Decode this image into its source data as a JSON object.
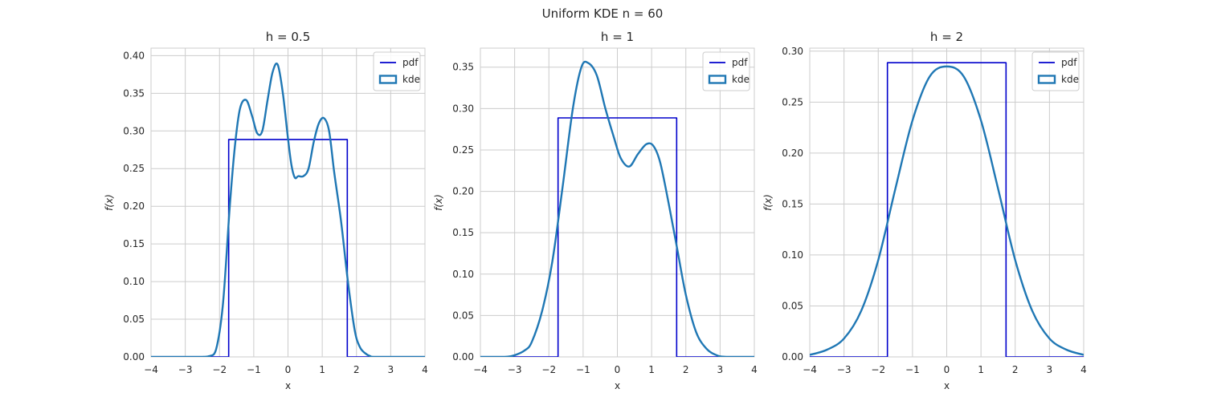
{
  "figure": {
    "suptitle": "Uniform KDE n = 60"
  },
  "colors": {
    "pdf": "#0000cc",
    "kde": "#1f77b4",
    "grid": "#cccccc",
    "text": "#262626"
  },
  "chart_data": [
    {
      "type": "line",
      "title": "h = 0.5",
      "xlabel": "x",
      "ylabel": "f(x)",
      "xlim": [
        -4,
        4
      ],
      "ylim": [
        0,
        0.41
      ],
      "xticks": [
        -4,
        -3,
        -2,
        -1,
        0,
        1,
        2,
        3,
        4
      ],
      "xtick_labels": [
        "−4",
        "−3",
        "−2",
        "−1",
        "0",
        "1",
        "2",
        "3",
        "4"
      ],
      "yticks": [
        0,
        0.05,
        0.1,
        0.15,
        0.2,
        0.25,
        0.3,
        0.35,
        0.4
      ],
      "ytick_labels": [
        "0.00",
        "0.05",
        "0.10",
        "0.15",
        "0.20",
        "0.25",
        "0.30",
        "0.35",
        "0.40"
      ],
      "grid": true,
      "legend": {
        "position": "upper-right",
        "entries": [
          {
            "label": "pdf",
            "series": "pdf",
            "marker": "line"
          },
          {
            "label": "kde",
            "series": "kde",
            "marker": "box"
          }
        ]
      },
      "series": [
        {
          "name": "pdf",
          "x": [
            -4,
            -1.732,
            -1.732,
            1.732,
            1.732,
            4
          ],
          "y": [
            0,
            0,
            0.2887,
            0.2887,
            0,
            0
          ]
        },
        {
          "name": "kde",
          "x": [
            -4,
            -2.6,
            -2.3,
            -2.1,
            -1.9,
            -1.7,
            -1.55,
            -1.4,
            -1.22,
            -1.05,
            -0.9,
            -0.75,
            -0.6,
            -0.45,
            -0.3,
            -0.15,
            0,
            0.1,
            0.2,
            0.3,
            0.45,
            0.6,
            0.75,
            0.9,
            1.05,
            1.2,
            1.35,
            1.55,
            1.75,
            1.95,
            2.1,
            2.25,
            2.4,
            2.6,
            4
          ],
          "y": [
            0,
            0,
            0.001,
            0.01,
            0.07,
            0.2,
            0.28,
            0.33,
            0.341,
            0.32,
            0.297,
            0.3,
            0.34,
            0.378,
            0.388,
            0.35,
            0.29,
            0.255,
            0.238,
            0.24,
            0.24,
            0.25,
            0.285,
            0.31,
            0.317,
            0.3,
            0.245,
            0.18,
            0.1,
            0.035,
            0.013,
            0.005,
            0.001,
            0,
            0
          ]
        }
      ]
    },
    {
      "type": "line",
      "title": "h = 1",
      "xlabel": "x",
      "ylabel": "f(x)",
      "xlim": [
        -4,
        4
      ],
      "ylim": [
        0,
        0.373
      ],
      "xticks": [
        -4,
        -3,
        -2,
        -1,
        0,
        1,
        2,
        3,
        4
      ],
      "xtick_labels": [
        "−4",
        "−3",
        "−2",
        "−1",
        "0",
        "1",
        "2",
        "3",
        "4"
      ],
      "yticks": [
        0,
        0.05,
        0.1,
        0.15,
        0.2,
        0.25,
        0.3,
        0.35
      ],
      "ytick_labels": [
        "0.00",
        "0.05",
        "0.10",
        "0.15",
        "0.20",
        "0.25",
        "0.30",
        "0.35"
      ],
      "grid": true,
      "legend": {
        "position": "upper-right",
        "entries": [
          {
            "label": "pdf",
            "series": "pdf",
            "marker": "line"
          },
          {
            "label": "kde",
            "series": "kde",
            "marker": "box"
          }
        ]
      },
      "series": [
        {
          "name": "pdf",
          "x": [
            -4,
            -1.732,
            -1.732,
            1.732,
            1.732,
            4
          ],
          "y": [
            0,
            0,
            0.2887,
            0.2887,
            0,
            0
          ]
        },
        {
          "name": "kde",
          "x": [
            -4,
            -3.3,
            -3,
            -2.7,
            -2.5,
            -2.2,
            -1.9,
            -1.6,
            -1.3,
            -1.05,
            -0.85,
            -0.6,
            -0.35,
            -0.1,
            0.1,
            0.35,
            0.6,
            0.85,
            1.05,
            1.25,
            1.5,
            1.75,
            2,
            2.3,
            2.6,
            2.9,
            3.2,
            4
          ],
          "y": [
            0,
            0,
            0.002,
            0.008,
            0.018,
            0.055,
            0.115,
            0.205,
            0.3,
            0.35,
            0.355,
            0.34,
            0.3,
            0.265,
            0.24,
            0.23,
            0.245,
            0.257,
            0.255,
            0.235,
            0.185,
            0.13,
            0.075,
            0.03,
            0.01,
            0.002,
            0,
            0
          ]
        }
      ]
    },
    {
      "type": "line",
      "title": "h = 2",
      "xlabel": "x",
      "ylabel": "f(x)",
      "xlim": [
        -4,
        4
      ],
      "ylim": [
        0,
        0.303
      ],
      "xticks": [
        -4,
        -3,
        -2,
        -1,
        0,
        1,
        2,
        3,
        4
      ],
      "xtick_labels": [
        "−4",
        "−3",
        "−2",
        "−1",
        "0",
        "1",
        "2",
        "3",
        "4"
      ],
      "yticks": [
        0,
        0.05,
        0.1,
        0.15,
        0.2,
        0.25,
        0.3
      ],
      "ytick_labels": [
        "0.00",
        "0.05",
        "0.10",
        "0.15",
        "0.20",
        "0.25",
        "0.30"
      ],
      "grid": true,
      "legend": {
        "position": "upper-right",
        "entries": [
          {
            "label": "pdf",
            "series": "pdf",
            "marker": "line"
          },
          {
            "label": "kde",
            "series": "kde",
            "marker": "box"
          }
        ]
      },
      "series": [
        {
          "name": "pdf",
          "x": [
            -4,
            -1.732,
            -1.732,
            1.732,
            1.732,
            4
          ],
          "y": [
            0,
            0,
            0.2887,
            0.2887,
            0,
            0
          ]
        },
        {
          "name": "kde",
          "x": [
            -4,
            -3.5,
            -3,
            -2.5,
            -2,
            -1.5,
            -1,
            -0.5,
            0,
            0.5,
            1,
            1.5,
            2,
            2.5,
            3,
            3.5,
            4
          ],
          "y": [
            0.002,
            0.007,
            0.018,
            0.045,
            0.095,
            0.165,
            0.232,
            0.275,
            0.285,
            0.275,
            0.232,
            0.165,
            0.095,
            0.045,
            0.018,
            0.007,
            0.002
          ]
        }
      ]
    }
  ]
}
